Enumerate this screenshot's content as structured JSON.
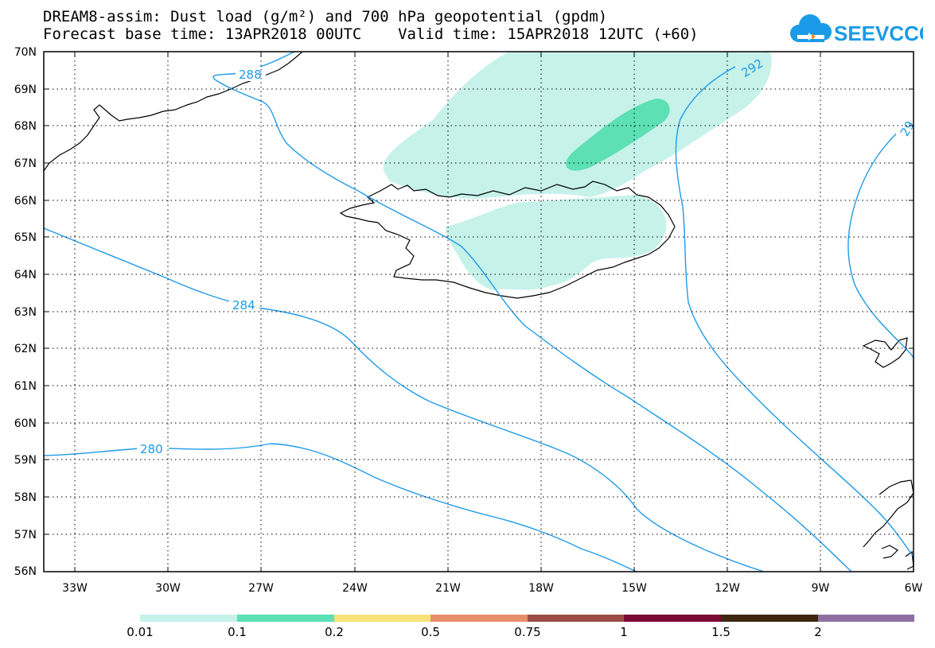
{
  "title": {
    "line1": "DREAM8-assim: Dust load (g/m²) and 700 hPa geopotential (gpdm)",
    "line2": "Forecast base time: 13APR2018 00UTC    Valid time: 15APR2018 12UTC (+60)"
  },
  "logo": {
    "text": "SEEVCCC",
    "icon": "cloud-logo-icon"
  },
  "map": {
    "lat_labels": [
      "70N",
      "69N",
      "68N",
      "67N",
      "66N",
      "65N",
      "64N",
      "63N",
      "62N",
      "61N",
      "60N",
      "59N",
      "58N",
      "57N",
      "56N"
    ],
    "lon_labels": [
      "33W",
      "30W",
      "27W",
      "24W",
      "21W",
      "18W",
      "15W",
      "12W",
      "9W",
      "6W"
    ],
    "contour_labels": [
      "288",
      "292",
      "29",
      "284",
      "280"
    ],
    "colors": {
      "frame": "#000000",
      "contour": "#1e9be8",
      "coast": "#000000",
      "dust_low": "#c6f2ea",
      "dust_mid": "#5ce0b4"
    }
  },
  "colorbar": {
    "labels": [
      "0.01",
      "0.1",
      "0.2",
      "0.5",
      "0.75",
      "1",
      "1.5",
      "2"
    ],
    "colors": [
      "#c6f2ea",
      "#5ce0b4",
      "#f5e37a",
      "#e78f6b",
      "#9c4d45",
      "#7d0a33",
      "#3d2710",
      "#8f6fa3"
    ]
  }
}
